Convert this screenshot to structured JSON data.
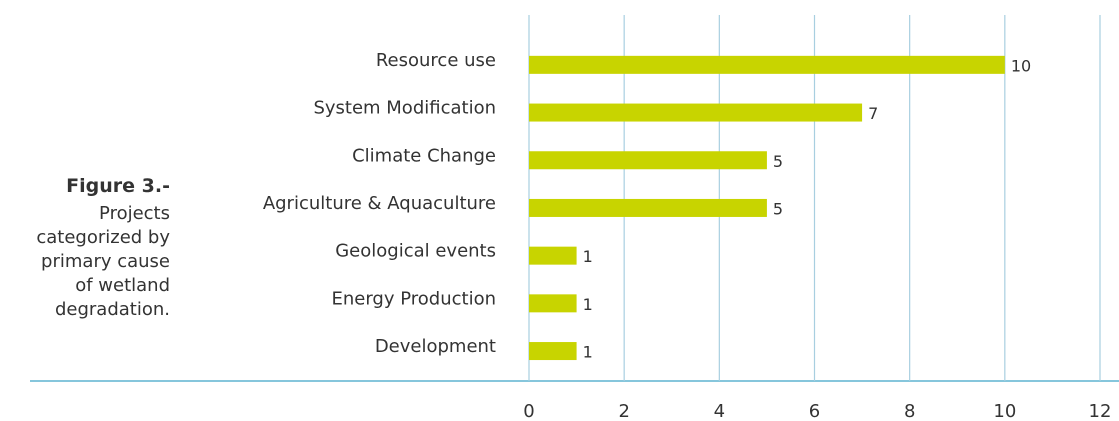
{
  "chart_data": {
    "type": "bar",
    "orientation": "horizontal",
    "caption_title": "Figure 3.-",
    "caption": "Projects categorized by primary cause of wetland degradation.",
    "categories": [
      "Resource use",
      "System Modification",
      "Climate Change",
      "Agriculture & Aquaculture",
      "Geological events",
      "Energy Production",
      "Development"
    ],
    "values": [
      10,
      7,
      5,
      5,
      1,
      1,
      1
    ],
    "color": "#c8d400",
    "xlim": [
      0,
      12
    ],
    "xticks": [
      0,
      2,
      4,
      6,
      8,
      10,
      12
    ],
    "grid": true
  }
}
